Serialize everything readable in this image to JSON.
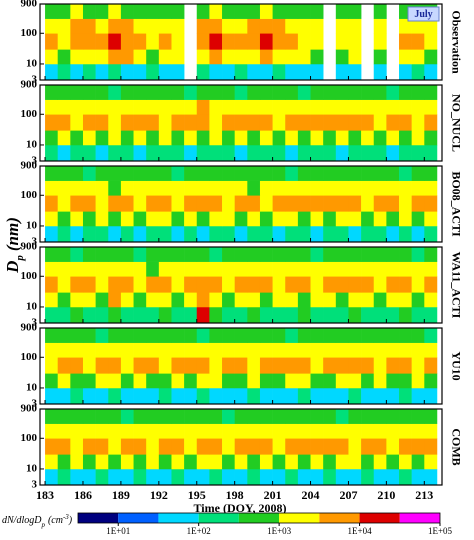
{
  "chart_data": {
    "type": "heatmap",
    "x_label": "Time (DOY, 2008)",
    "y_label": "D",
    "y_label_sub": "p",
    "y_label_unit": "(nm)",
    "annotation": "July",
    "x": [
      183,
      184,
      185,
      186,
      187,
      188,
      189,
      190,
      191,
      192,
      193,
      194,
      195,
      196,
      197,
      198,
      199,
      200,
      201,
      202,
      203,
      204,
      205,
      206,
      207,
      208,
      209,
      210,
      211,
      212,
      213
    ],
    "xlim": [
      182.6,
      214.4
    ],
    "xticks": [
      183,
      186,
      189,
      192,
      195,
      198,
      201,
      204,
      207,
      210,
      213
    ],
    "size_bins": [
      3,
      10,
      30,
      100,
      300,
      900
    ],
    "ylim": [
      3,
      900
    ],
    "yticks": [
      3,
      10,
      100,
      900
    ],
    "log_y": true,
    "panels": [
      {
        "name": "Observation",
        "z": [
          [
            60,
            200,
            60,
            200,
            60,
            200,
            60,
            60,
            200,
            60,
            60,
            null,
            200,
            60,
            60,
            200,
            60,
            60,
            200,
            60,
            60,
            60,
            null,
            60,
            60,
            null,
            60,
            null,
            60,
            200,
            60
          ],
          [
            2000,
            600,
            2000,
            2000,
            2000,
            6000,
            6000,
            2000,
            600,
            2000,
            2000,
            null,
            2000,
            6000,
            2000,
            2000,
            2000,
            6000,
            2000,
            2000,
            2000,
            600,
            null,
            600,
            2000,
            null,
            600,
            null,
            2000,
            2000,
            600
          ],
          [
            6000,
            2000,
            6000,
            6000,
            6000,
            20000,
            6000,
            6000,
            2000,
            6000,
            2000,
            null,
            6000,
            20000,
            6000,
            6000,
            6000,
            20000,
            6000,
            6000,
            2000,
            2000,
            null,
            2000,
            2000,
            null,
            2000,
            null,
            6000,
            6000,
            2000
          ],
          [
            2000,
            2000,
            6000,
            6000,
            2000,
            6000,
            6000,
            2000,
            2000,
            2000,
            2000,
            null,
            6000,
            6000,
            2000,
            2000,
            6000,
            6000,
            6000,
            2000,
            2000,
            2000,
            null,
            2000,
            2000,
            null,
            2000,
            null,
            2000,
            2000,
            2000
          ],
          [
            600,
            600,
            2000,
            600,
            600,
            2000,
            600,
            600,
            600,
            600,
            600,
            null,
            600,
            2000,
            600,
            600,
            600,
            2000,
            600,
            600,
            600,
            600,
            null,
            600,
            600,
            null,
            600,
            null,
            600,
            600,
            600
          ]
        ]
      },
      {
        "name": "NO_NUCL",
        "z": [
          [
            200,
            60,
            200,
            200,
            60,
            200,
            200,
            60,
            200,
            200,
            200,
            60,
            200,
            200,
            200,
            60,
            200,
            200,
            200,
            60,
            200,
            200,
            200,
            60,
            200,
            200,
            200,
            60,
            200,
            200,
            200
          ],
          [
            600,
            2000,
            600,
            2000,
            600,
            2000,
            600,
            2000,
            600,
            2000,
            600,
            2000,
            600,
            2000,
            600,
            2000,
            600,
            2000,
            600,
            2000,
            600,
            2000,
            600,
            2000,
            600,
            2000,
            600,
            2000,
            600,
            2000,
            600
          ],
          [
            6000,
            6000,
            2000,
            6000,
            6000,
            2000,
            6000,
            6000,
            6000,
            2000,
            6000,
            6000,
            6000,
            2000,
            6000,
            6000,
            6000,
            6000,
            2000,
            6000,
            6000,
            6000,
            6000,
            6000,
            6000,
            6000,
            2000,
            6000,
            6000,
            2000,
            6000
          ],
          [
            2000,
            2000,
            2000,
            2000,
            2000,
            2000,
            2000,
            2000,
            2000,
            2000,
            2000,
            2000,
            6000,
            2000,
            2000,
            2000,
            2000,
            2000,
            2000,
            2000,
            2000,
            2000,
            2000,
            2000,
            2000,
            2000,
            2000,
            2000,
            2000,
            2000,
            2000
          ],
          [
            600,
            600,
            600,
            600,
            600,
            200,
            600,
            600,
            600,
            600,
            600,
            200,
            600,
            600,
            600,
            200,
            600,
            600,
            600,
            600,
            200,
            600,
            600,
            600,
            600,
            600,
            600,
            200,
            600,
            600,
            600
          ]
        ]
      },
      {
        "name": "BO08_ACTI",
        "z": [
          [
            60,
            200,
            60,
            200,
            200,
            60,
            200,
            60,
            200,
            200,
            60,
            200,
            60,
            200,
            200,
            60,
            200,
            200,
            60,
            200,
            200,
            60,
            200,
            200,
            60,
            200,
            200,
            60,
            200,
            60,
            200
          ],
          [
            2000,
            600,
            2000,
            600,
            2000,
            600,
            2000,
            600,
            2000,
            2000,
            600,
            2000,
            600,
            2000,
            2000,
            600,
            2000,
            600,
            2000,
            2000,
            600,
            2000,
            600,
            2000,
            2000,
            600,
            2000,
            600,
            2000,
            600,
            2000
          ],
          [
            6000,
            2000,
            6000,
            6000,
            2000,
            6000,
            6000,
            2000,
            6000,
            6000,
            2000,
            6000,
            6000,
            6000,
            2000,
            6000,
            6000,
            2000,
            6000,
            6000,
            6000,
            6000,
            6000,
            6000,
            6000,
            2000,
            6000,
            6000,
            2000,
            6000,
            6000
          ],
          [
            2000,
            2000,
            2000,
            2000,
            2000,
            600,
            2000,
            2000,
            2000,
            2000,
            2000,
            2000,
            2000,
            2000,
            2000,
            2000,
            600,
            2000,
            2000,
            2000,
            2000,
            2000,
            2000,
            2000,
            2000,
            2000,
            2000,
            2000,
            2000,
            2000,
            2000
          ],
          [
            600,
            600,
            600,
            200,
            600,
            600,
            600,
            600,
            600,
            600,
            200,
            600,
            600,
            600,
            600,
            600,
            600,
            600,
            600,
            200,
            600,
            600,
            600,
            600,
            600,
            600,
            600,
            600,
            200,
            600,
            600
          ]
        ]
      },
      {
        "name": "WA11_ACTI",
        "z": [
          [
            200,
            200,
            600,
            200,
            200,
            600,
            200,
            200,
            200,
            600,
            200,
            200,
            20000,
            600,
            200,
            200,
            600,
            200,
            200,
            200,
            600,
            200,
            200,
            200,
            600,
            200,
            200,
            200,
            600,
            200,
            200
          ],
          [
            2000,
            600,
            2000,
            2000,
            600,
            6000,
            2000,
            600,
            2000,
            2000,
            600,
            2000,
            6000,
            2000,
            600,
            2000,
            2000,
            600,
            2000,
            2000,
            600,
            2000,
            2000,
            600,
            2000,
            2000,
            600,
            2000,
            2000,
            600,
            2000
          ],
          [
            6000,
            2000,
            6000,
            6000,
            2000,
            6000,
            6000,
            2000,
            6000,
            6000,
            2000,
            6000,
            6000,
            6000,
            2000,
            6000,
            6000,
            6000,
            2000,
            6000,
            6000,
            2000,
            6000,
            6000,
            6000,
            6000,
            2000,
            6000,
            6000,
            2000,
            6000
          ],
          [
            2000,
            2000,
            2000,
            2000,
            2000,
            2000,
            2000,
            2000,
            600,
            2000,
            2000,
            2000,
            2000,
            2000,
            2000,
            2000,
            2000,
            2000,
            2000,
            2000,
            2000,
            2000,
            2000,
            2000,
            2000,
            2000,
            2000,
            2000,
            2000,
            2000,
            2000
          ],
          [
            600,
            600,
            200,
            600,
            600,
            600,
            600,
            200,
            600,
            600,
            600,
            600,
            600,
            200,
            600,
            600,
            600,
            600,
            600,
            600,
            600,
            200,
            600,
            600,
            600,
            600,
            600,
            600,
            600,
            200,
            600
          ]
        ]
      },
      {
        "name": "YU10",
        "z": [
          [
            60,
            60,
            200,
            60,
            60,
            200,
            60,
            60,
            60,
            200,
            60,
            60,
            200,
            60,
            60,
            60,
            200,
            60,
            60,
            60,
            200,
            60,
            60,
            60,
            200,
            60,
            60,
            60,
            200,
            60,
            60
          ],
          [
            600,
            2000,
            600,
            600,
            2000,
            2000,
            600,
            2000,
            600,
            600,
            2000,
            600,
            2000,
            2000,
            600,
            600,
            2000,
            600,
            600,
            2000,
            2000,
            600,
            600,
            2000,
            2000,
            600,
            2000,
            600,
            600,
            2000,
            600
          ],
          [
            2000,
            6000,
            6000,
            2000,
            6000,
            6000,
            2000,
            6000,
            6000,
            2000,
            6000,
            6000,
            6000,
            2000,
            6000,
            6000,
            2000,
            6000,
            6000,
            6000,
            6000,
            2000,
            6000,
            6000,
            6000,
            6000,
            2000,
            6000,
            6000,
            2000,
            6000
          ],
          [
            2000,
            2000,
            2000,
            2000,
            2000,
            2000,
            2000,
            2000,
            2000,
            2000,
            2000,
            2000,
            2000,
            2000,
            2000,
            2000,
            2000,
            2000,
            2000,
            2000,
            2000,
            2000,
            2000,
            2000,
            2000,
            2000,
            2000,
            2000,
            2000,
            2000,
            2000
          ],
          [
            600,
            600,
            600,
            600,
            200,
            600,
            600,
            600,
            600,
            600,
            600,
            600,
            200,
            600,
            600,
            600,
            600,
            600,
            600,
            200,
            600,
            600,
            600,
            600,
            600,
            600,
            600,
            600,
            600,
            600,
            200
          ]
        ]
      },
      {
        "name": "COMB",
        "z": [
          [
            60,
            200,
            60,
            60,
            200,
            60,
            60,
            200,
            60,
            60,
            200,
            60,
            60,
            200,
            60,
            60,
            200,
            60,
            60,
            200,
            60,
            60,
            200,
            60,
            60,
            200,
            60,
            60,
            200,
            60,
            60
          ],
          [
            2000,
            600,
            2000,
            600,
            2000,
            600,
            2000,
            600,
            2000,
            600,
            2000,
            600,
            2000,
            2000,
            600,
            2000,
            600,
            2000,
            600,
            2000,
            600,
            2000,
            600,
            2000,
            2000,
            600,
            2000,
            600,
            2000,
            600,
            2000
          ],
          [
            6000,
            6000,
            2000,
            6000,
            6000,
            2000,
            6000,
            6000,
            2000,
            6000,
            6000,
            2000,
            6000,
            6000,
            2000,
            6000,
            6000,
            6000,
            2000,
            6000,
            6000,
            6000,
            6000,
            6000,
            2000,
            6000,
            6000,
            2000,
            6000,
            6000,
            6000
          ],
          [
            2000,
            2000,
            2000,
            2000,
            2000,
            2000,
            2000,
            2000,
            2000,
            2000,
            2000,
            2000,
            2000,
            2000,
            2000,
            2000,
            2000,
            2000,
            2000,
            2000,
            2000,
            2000,
            2000,
            2000,
            2000,
            2000,
            2000,
            2000,
            2000,
            2000,
            2000
          ],
          [
            600,
            600,
            600,
            600,
            600,
            600,
            200,
            600,
            600,
            600,
            600,
            600,
            600,
            600,
            200,
            600,
            600,
            600,
            600,
            600,
            600,
            600,
            600,
            200,
            600,
            600,
            600,
            600,
            600,
            600,
            600
          ]
        ]
      }
    ],
    "colorbar": {
      "label": "dN/dlogD",
      "label_sub": "p",
      "label_unit": "(cm",
      "label_sup": "-3",
      "label_close": ")",
      "levels": [
        3.16,
        10,
        31.6,
        100,
        316,
        1000,
        3160,
        10000,
        31600,
        100000
      ],
      "colors": [
        "#00007f",
        "#0060ff",
        "#00d8ff",
        "#00e07a",
        "#22cc22",
        "#ffff00",
        "#ff9900",
        "#dd0000",
        "#ff00ff"
      ],
      "ticks": [
        {
          "value": 10,
          "label": "1E+01"
        },
        {
          "value": 100,
          "label": "1E+02"
        },
        {
          "value": 1000,
          "label": "1E+03"
        },
        {
          "value": 10000,
          "label": "1E+04"
        },
        {
          "value": 100000,
          "label": "1E+05"
        }
      ]
    }
  }
}
